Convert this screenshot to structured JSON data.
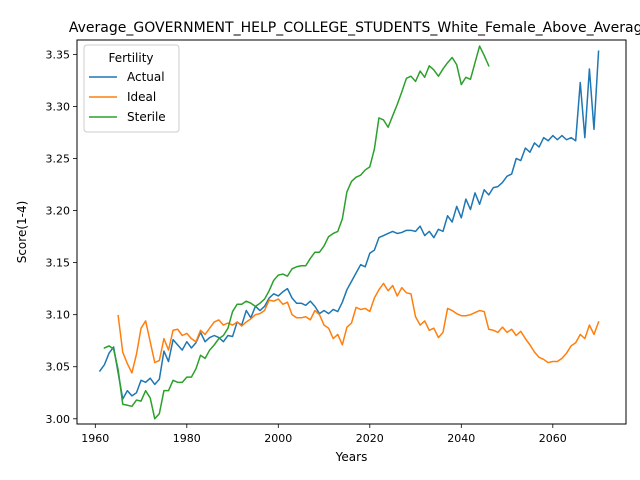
{
  "chart_data": {
    "type": "line",
    "title": "Average_GOVERNMENT_HELP_COLLEGE_STUDENTS_White_Female_Above_Average",
    "xlabel": "Years",
    "ylabel": "Score(1-4)",
    "xlim": [
      1956,
      2076
    ],
    "ylim": [
      2.995,
      3.3638
    ],
    "xticks": [
      1960,
      1980,
      2000,
      2020,
      2040,
      2060
    ],
    "yticks": [
      3.0,
      3.05,
      3.1,
      3.15,
      3.2,
      3.25,
      3.3,
      3.35
    ],
    "yticklabels": [
      "3.00",
      "3.05",
      "3.10",
      "3.15",
      "3.20",
      "3.25",
      "3.30",
      "3.35"
    ],
    "grid": false,
    "legend": {
      "title": "Fertility",
      "placement": "upper-left"
    },
    "series": [
      {
        "name": "Actual",
        "color": "#1f77b4",
        "x": [
          1961,
          1962,
          1963,
          1964,
          1965,
          1966,
          1967,
          1968,
          1969,
          1970,
          1971,
          1972,
          1973,
          1974,
          1975,
          1976,
          1977,
          1978,
          1979,
          1980,
          1981,
          1982,
          1983,
          1984,
          1985,
          1986,
          1987,
          1988,
          1989,
          1990,
          1991,
          1992,
          1993,
          1994,
          1995,
          1996,
          1997,
          1998,
          1999,
          2000,
          2001,
          2002,
          2003,
          2004,
          2005,
          2006,
          2007,
          2008,
          2009,
          2010,
          2011,
          2012,
          2013,
          2014,
          2015,
          2016,
          2017,
          2018,
          2019,
          2020,
          2021,
          2022,
          2023,
          2024,
          2025,
          2026,
          2027,
          2028,
          2029,
          2030,
          2031,
          2032,
          2033,
          2034,
          2035,
          2036,
          2037,
          2038,
          2039,
          2040,
          2041,
          2042,
          2043,
          2044,
          2045,
          2046,
          2047,
          2048,
          2049,
          2050,
          2051,
          2052,
          2053,
          2054,
          2055,
          2056,
          2057,
          2058,
          2059,
          2060,
          2061,
          2062,
          2063,
          2064,
          2065,
          2066,
          2067,
          2068,
          2069,
          2070
        ],
        "y": [
          3.046,
          3.052,
          3.063,
          3.069,
          3.044,
          3.019,
          3.027,
          3.022,
          3.025,
          3.037,
          3.035,
          3.039,
          3.033,
          3.038,
          3.065,
          3.055,
          3.076,
          3.071,
          3.066,
          3.074,
          3.068,
          3.073,
          3.083,
          3.074,
          3.078,
          3.08,
          3.078,
          3.074,
          3.08,
          3.079,
          3.093,
          3.09,
          3.104,
          3.097,
          3.108,
          3.104,
          3.108,
          3.116,
          3.12,
          3.118,
          3.122,
          3.125,
          3.116,
          3.111,
          3.111,
          3.109,
          3.113,
          3.108,
          3.101,
          3.104,
          3.101,
          3.105,
          3.103,
          3.112,
          3.124,
          3.132,
          3.14,
          3.148,
          3.146,
          3.159,
          3.162,
          3.174,
          3.176,
          3.178,
          3.18,
          3.178,
          3.179,
          3.181,
          3.181,
          3.18,
          3.185,
          3.176,
          3.18,
          3.174,
          3.182,
          3.18,
          3.195,
          3.189,
          3.204,
          3.193,
          3.211,
          3.201,
          3.217,
          3.206,
          3.22,
          3.215,
          3.222,
          3.223,
          3.227,
          3.233,
          3.235,
          3.25,
          3.248,
          3.26,
          3.256,
          3.265,
          3.261,
          3.27,
          3.267,
          3.272,
          3.268,
          3.272,
          3.268,
          3.27,
          3.267,
          3.323,
          3.27,
          3.336,
          3.278,
          3.353
        ]
      },
      {
        "name": "Ideal",
        "color": "#ff7f0e",
        "x": [
          1965,
          1966,
          1967,
          1968,
          1969,
          1970,
          1971,
          1972,
          1973,
          1974,
          1975,
          1976,
          1977,
          1978,
          1979,
          1980,
          1981,
          1982,
          1983,
          1984,
          1985,
          1986,
          1987,
          1988,
          1989,
          1990,
          1991,
          1992,
          1993,
          1994,
          1995,
          1996,
          1997,
          1998,
          1999,
          2000,
          2001,
          2002,
          2003,
          2004,
          2005,
          2006,
          2007,
          2008,
          2009,
          2010,
          2011,
          2012,
          2013,
          2014,
          2015,
          2016,
          2017,
          2018,
          2019,
          2020,
          2021,
          2022,
          2023,
          2024,
          2025,
          2026,
          2027,
          2028,
          2029,
          2030,
          2031,
          2032,
          2033,
          2034,
          2035,
          2036,
          2037,
          2038,
          2039,
          2040,
          2041,
          2042,
          2043,
          2044,
          2045,
          2046,
          2047,
          2048,
          2049,
          2050,
          2051,
          2052,
          2053,
          2054,
          2055,
          2056,
          2057,
          2058,
          2059,
          2060,
          2061,
          2062,
          2063,
          2064,
          2065,
          2066,
          2067,
          2068,
          2069,
          2070
        ],
        "y": [
          3.099,
          3.064,
          3.053,
          3.044,
          3.062,
          3.087,
          3.094,
          3.074,
          3.054,
          3.056,
          3.077,
          3.066,
          3.085,
          3.086,
          3.08,
          3.082,
          3.077,
          3.074,
          3.085,
          3.081,
          3.087,
          3.093,
          3.095,
          3.09,
          3.092,
          3.09,
          3.093,
          3.089,
          3.093,
          3.096,
          3.1,
          3.101,
          3.104,
          3.114,
          3.113,
          3.115,
          3.11,
          3.112,
          3.1,
          3.097,
          3.097,
          3.098,
          3.095,
          3.104,
          3.1,
          3.09,
          3.087,
          3.077,
          3.081,
          3.071,
          3.088,
          3.092,
          3.107,
          3.105,
          3.106,
          3.103,
          3.116,
          3.124,
          3.13,
          3.123,
          3.128,
          3.118,
          3.126,
          3.121,
          3.12,
          3.098,
          3.09,
          3.094,
          3.085,
          3.087,
          3.078,
          3.083,
          3.106,
          3.104,
          3.101,
          3.099,
          3.099,
          3.1,
          3.102,
          3.104,
          3.103,
          3.086,
          3.085,
          3.083,
          3.088,
          3.083,
          3.086,
          3.08,
          3.084,
          3.077,
          3.071,
          3.064,
          3.059,
          3.057,
          3.054,
          3.055,
          3.055,
          3.058,
          3.063,
          3.07,
          3.073,
          3.081,
          3.077,
          3.09,
          3.081,
          3.093
        ]
      },
      {
        "name": "Sterile",
        "color": "#2ca02c",
        "x": [
          1962,
          1963,
          1964,
          1965,
          1966,
          1967,
          1968,
          1969,
          1970,
          1971,
          1972,
          1973,
          1974,
          1975,
          1976,
          1977,
          1978,
          1979,
          1980,
          1981,
          1982,
          1983,
          1984,
          1985,
          1986,
          1987,
          1988,
          1989,
          1990,
          1991,
          1992,
          1993,
          1994,
          1995,
          1996,
          1997,
          1998,
          1999,
          2000,
          2001,
          2002,
          2003,
          2004,
          2005,
          2006,
          2007,
          2008,
          2009,
          2010,
          2011,
          2012,
          2013,
          2014,
          2015,
          2016,
          2017,
          2018,
          2019,
          2020,
          2021,
          2022,
          2023,
          2024,
          2025,
          2026,
          2027,
          2028,
          2029,
          2030,
          2031,
          2032,
          2033,
          2034,
          2035,
          2036,
          2037,
          2038,
          2039,
          2040,
          2041,
          2042,
          2043,
          2044,
          2045,
          2046
        ],
        "y": [
          3.068,
          3.07,
          3.067,
          3.047,
          3.014,
          3.013,
          3.012,
          3.018,
          3.017,
          3.027,
          3.02,
          3.0,
          3.005,
          3.027,
          3.027,
          3.037,
          3.035,
          3.035,
          3.04,
          3.04,
          3.048,
          3.061,
          3.058,
          3.066,
          3.071,
          3.077,
          3.08,
          3.087,
          3.103,
          3.11,
          3.11,
          3.113,
          3.111,
          3.108,
          3.111,
          3.115,
          3.123,
          3.133,
          3.138,
          3.139,
          3.137,
          3.144,
          3.146,
          3.147,
          3.147,
          3.154,
          3.16,
          3.16,
          3.166,
          3.175,
          3.178,
          3.18,
          3.192,
          3.218,
          3.228,
          3.232,
          3.234,
          3.239,
          3.242,
          3.259,
          3.289,
          3.287,
          3.28,
          3.291,
          3.302,
          3.314,
          3.327,
          3.329,
          3.324,
          3.334,
          3.328,
          3.339,
          3.335,
          3.329,
          3.336,
          3.342,
          3.347,
          3.34,
          3.321,
          3.328,
          3.326,
          3.342,
          3.358,
          3.349,
          3.339
        ]
      }
    ]
  }
}
